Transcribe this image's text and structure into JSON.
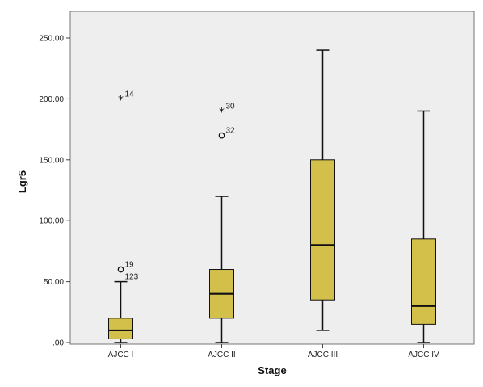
{
  "chart_data": {
    "type": "boxplot",
    "xlabel": "Stage",
    "ylabel": "Lgr5",
    "ylim": [
      0,
      250
    ],
    "yticks": [
      0,
      50,
      100,
      150,
      200,
      250
    ],
    "ytick_labels": [
      ".00",
      "50.00",
      "100.00",
      "150.00",
      "200.00",
      "250.00"
    ],
    "categories": [
      "AJCC I",
      "AJCC II",
      "AJCC III",
      "AJCC IV"
    ],
    "box_color": "#d2c04a",
    "plot_background": "#eeeeee",
    "boxes": [
      {
        "category": "AJCC I",
        "whisker_low": 0,
        "q1": 3,
        "median": 10,
        "q3": 20,
        "whisker_high": 50,
        "outliers": [
          {
            "value": 200,
            "label": "14",
            "marker": "star"
          },
          {
            "value": 60,
            "label": "19",
            "marker": "circle"
          },
          {
            "value": 50,
            "label": "123",
            "marker": "none"
          }
        ]
      },
      {
        "category": "AJCC II",
        "whisker_low": 0,
        "q1": 20,
        "median": 40,
        "q3": 60,
        "whisker_high": 120,
        "outliers": [
          {
            "value": 190,
            "label": "30",
            "marker": "star"
          },
          {
            "value": 170,
            "label": "32",
            "marker": "circle"
          }
        ]
      },
      {
        "category": "AJCC III",
        "whisker_low": 10,
        "q1": 35,
        "median": 80,
        "q3": 150,
        "whisker_high": 240,
        "outliers": []
      },
      {
        "category": "AJCC IV",
        "whisker_low": 0,
        "q1": 15,
        "median": 30,
        "q3": 85,
        "whisker_high": 190,
        "outliers": []
      }
    ]
  }
}
